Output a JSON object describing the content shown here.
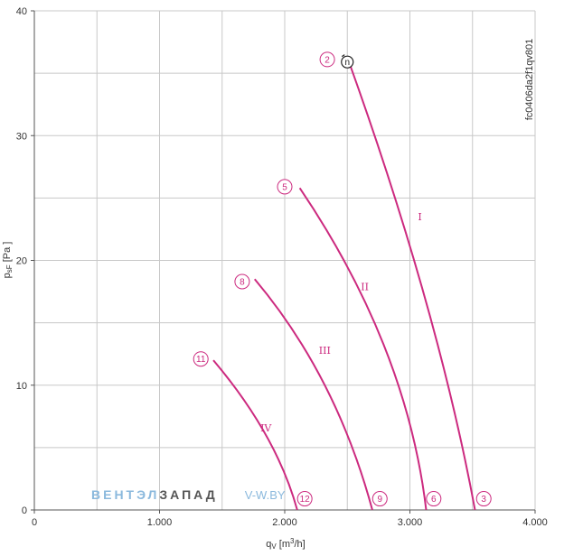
{
  "chart_data": {
    "type": "line",
    "xlabel_main": "q",
    "xlabel_sub": "V",
    "xlabel_unit_pre": " [m",
    "xlabel_unit_sup": "3",
    "xlabel_unit_post": "/h]",
    "ylabel_main": "p",
    "ylabel_sub": "sF",
    "ylabel_unit": " [Pa ]",
    "xlim": [
      0,
      4000
    ],
    "ylim": [
      0,
      40
    ],
    "xticks": [
      0,
      1000,
      2000,
      3000,
      4000
    ],
    "xtick_labels": [
      "0",
      "1.000",
      "2.000",
      "3.000",
      "4.000"
    ],
    "yticks": [
      0,
      10,
      20,
      30,
      40
    ],
    "ytick_labels": [
      "0",
      "10",
      "20",
      "30",
      "40"
    ],
    "grid": true,
    "side_code": "fc0406da2f1qv801",
    "series_color": "#cc2a7f",
    "series": [
      {
        "name": "I",
        "points": [
          [
            2510,
            36
          ],
          [
            3120,
            17
          ],
          [
            3520,
            0
          ]
        ]
      },
      {
        "name": "II",
        "points": [
          [
            2120,
            25.8
          ],
          [
            2800,
            13
          ],
          [
            3130,
            0
          ]
        ]
      },
      {
        "name": "III",
        "points": [
          [
            1760,
            18.5
          ],
          [
            2320,
            10
          ],
          [
            2700,
            0
          ]
        ]
      },
      {
        "name": "IV",
        "points": [
          [
            1430,
            12
          ],
          [
            1850,
            6
          ],
          [
            2100,
            0
          ]
        ]
      }
    ],
    "roman_labels": [
      {
        "text": "I",
        "x": 3080,
        "y": 23.5
      },
      {
        "text": "II",
        "x": 2640,
        "y": 17.9
      },
      {
        "text": "III",
        "x": 2320,
        "y": 12.8
      },
      {
        "text": "IV",
        "x": 1850,
        "y": 6.6
      }
    ],
    "markers": [
      {
        "label": "2",
        "x": 2340,
        "y": 36.1
      },
      {
        "label": "3",
        "x": 3590,
        "y": 0.9
      },
      {
        "label": "5",
        "x": 2000,
        "y": 25.9
      },
      {
        "label": "6",
        "x": 3190,
        "y": 0.9
      },
      {
        "label": "8",
        "x": 1660,
        "y": 18.3
      },
      {
        "label": "9",
        "x": 2760,
        "y": 0.9
      },
      {
        "label": "11",
        "x": 1330,
        "y": 12.1
      },
      {
        "label": "12",
        "x": 2160,
        "y": 0.9
      }
    ],
    "fan_icon": {
      "label": "n",
      "x": 2500,
      "y": 35.9
    }
  },
  "watermark": {
    "part1": "ВЕНТЭЛ",
    "part2": "ЗАПАД",
    "part3": "V-W.BY",
    "color1": "#8bb9dd",
    "color2": "#555555",
    "color3": "#8bb9dd"
  }
}
